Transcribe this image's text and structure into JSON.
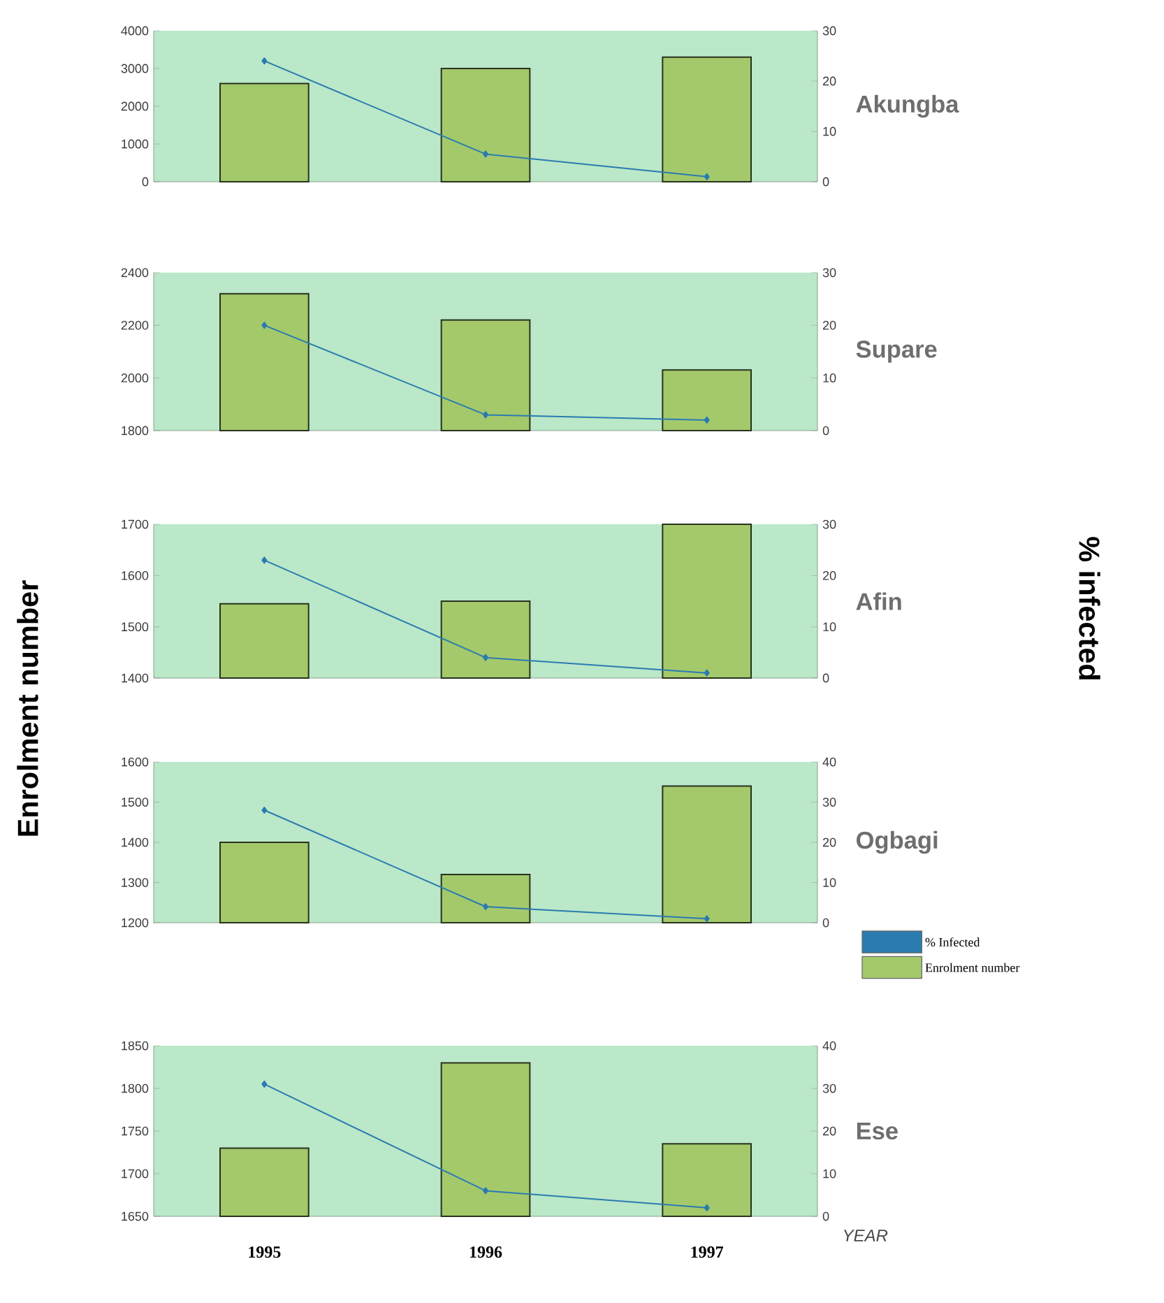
{
  "chart_data": [
    {
      "type": "bar",
      "annotations": [
        "Akungba"
      ],
      "categories": [
        "1995",
        "1996",
        "1997"
      ],
      "tick_labels": "y",
      "marker": "diamond",
      "ylim": [
        0,
        4000
      ],
      "yticks": [
        0,
        1000,
        2000,
        3000,
        4000
      ],
      "y2lim": [
        0,
        30
      ],
      "y2ticks": [
        0,
        10,
        20,
        30
      ],
      "series": [
        {
          "type": "line",
          "axis": "y2",
          "color": "#2b7bb0",
          "values": [
            24,
            5.5,
            1
          ]
        },
        {
          "type": "bar",
          "color": "#a3c96b",
          "values": [
            2600,
            3000,
            3300
          ]
        }
      ]
    },
    {
      "type": "bar",
      "annotations": [
        "Supare"
      ],
      "categories": [
        "1995",
        "1996",
        "1997"
      ],
      "tick_labels": "y",
      "marker": "diamond",
      "ylim": [
        1800,
        2400
      ],
      "yticks": [
        1800,
        2000,
        2200,
        2400
      ],
      "y2lim": [
        0,
        30
      ],
      "y2ticks": [
        0,
        10,
        20,
        30
      ],
      "series": [
        {
          "type": "line",
          "axis": "y2",
          "color": "#2b7bb0",
          "values": [
            20,
            3,
            2
          ]
        },
        {
          "type": "bar",
          "color": "#a3c96b",
          "values": [
            2320,
            2220,
            2030
          ]
        }
      ]
    },
    {
      "type": "bar",
      "annotations": [
        "Afin"
      ],
      "categories": [
        "1995",
        "1996",
        "1997"
      ],
      "tick_labels": "y",
      "marker": "diamond",
      "ylabel": "Enrolment number",
      "y2label": "% infected",
      "ylim": [
        1400,
        1700
      ],
      "yticks": [
        1400,
        1500,
        1600,
        1700
      ],
      "y2lim": [
        0,
        30
      ],
      "y2ticks": [
        0,
        10,
        20,
        30
      ],
      "series": [
        {
          "type": "line",
          "axis": "y2",
          "color": "#2b7bb0",
          "values": [
            23,
            4,
            1
          ]
        },
        {
          "type": "bar",
          "color": "#a3c96b",
          "values": [
            1545,
            1550,
            1700
          ]
        }
      ]
    },
    {
      "type": "bar",
      "annotations": [
        "Ogbagi"
      ],
      "categories": [
        "1995",
        "1996",
        "1997"
      ],
      "tick_labels": "y",
      "marker": "diamond",
      "legend": "bottom right",
      "ylim": [
        1200,
        1600
      ],
      "yticks": [
        1200,
        1300,
        1400,
        1500,
        1600
      ],
      "y2lim": [
        0,
        40
      ],
      "y2ticks": [
        0,
        10,
        20,
        30,
        40
      ],
      "series": [
        {
          "name": "% Infected",
          "type": "line",
          "axis": "y2",
          "color": "#2b7bb0",
          "values": [
            28,
            4,
            1
          ]
        },
        {
          "name": "Enrolment number",
          "type": "bar",
          "color": "#a3c96b",
          "values": [
            1400,
            1320,
            1540
          ]
        }
      ]
    },
    {
      "type": "bar",
      "annotations": [
        "Ese"
      ],
      "categories": [
        "1995",
        "1996",
        "1997"
      ],
      "xlabel": "YEAR",
      "marker": "diamond",
      "ylim": [
        1650,
        1850
      ],
      "yticks": [
        1650,
        1700,
        1750,
        1800,
        1850
      ],
      "y2lim": [
        0,
        40
      ],
      "y2ticks": [
        0,
        10,
        20,
        30,
        40
      ],
      "series": [
        {
          "type": "line",
          "axis": "y2",
          "color": "#2b7bb0",
          "values": [
            31,
            6,
            2
          ]
        },
        {
          "type": "bar",
          "color": "#a3c96b",
          "values": [
            1730,
            1830,
            1735
          ]
        }
      ]
    }
  ]
}
